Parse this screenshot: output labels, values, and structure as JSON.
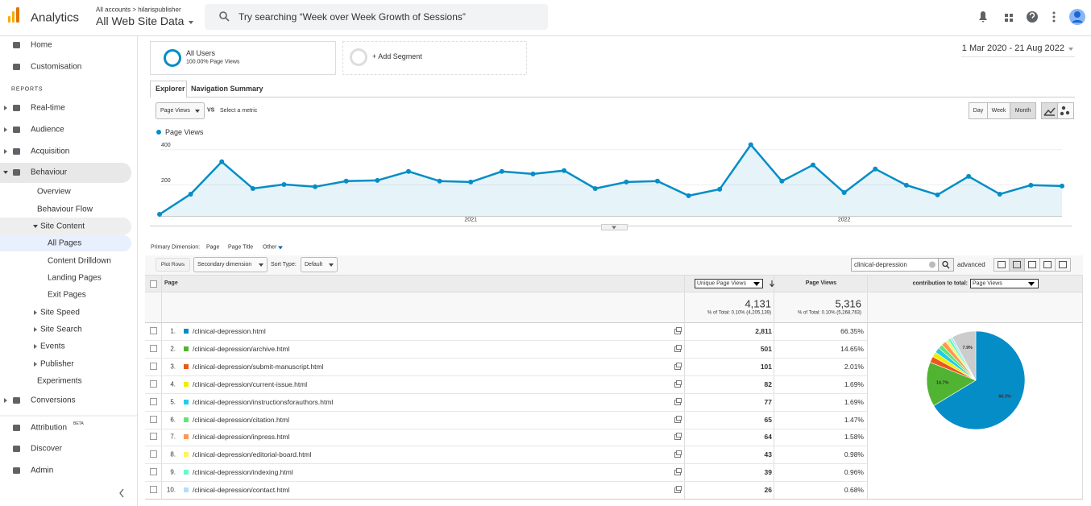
{
  "header": {
    "app_name": "Analytics",
    "breadcrumb": "All accounts > hilarispublisher",
    "property": "All Web Site Data",
    "search_placeholder": "Try searching “Week over Week Growth of Sessions”"
  },
  "sidebar": {
    "reports_heading": "REPORTS",
    "beta_badge": "BETA",
    "items": [
      "Home",
      "Customisation",
      "Real-time",
      "Audience",
      "Acquisition",
      "Behaviour",
      "Overview",
      "Behaviour Flow",
      "Site Content",
      "All Pages",
      "Content Drilldown",
      "Landing Pages",
      "Exit Pages",
      "Site Speed",
      "Site Search",
      "Events",
      "Publisher",
      "Experiments",
      "Conversions",
      "Attribution",
      "Discover",
      "Admin"
    ]
  },
  "segments": {
    "active_name": "All Users",
    "active_detail": "100.00% Page Views",
    "add_segment": "+ Add Segment"
  },
  "date_range": "1 Mar 2020 - 21 Aug 2022",
  "tabs": [
    "Explorer",
    "Navigation Summary"
  ],
  "metric_selector": "Page Views",
  "versus": "VS",
  "select_metric": "Select a metric",
  "granularity": [
    "Day",
    "Week",
    "Month"
  ],
  "explorer_chart": {
    "type": "line",
    "categories": [
      null,
      null,
      null,
      null,
      null,
      null,
      null,
      null,
      null,
      null,
      "2021",
      null,
      null,
      null,
      null,
      null,
      null,
      null,
      null,
      null,
      null,
      null,
      "2022",
      null,
      null,
      null,
      null,
      null,
      null,
      null
    ],
    "series": [
      {
        "name": "Page Views",
        "color": "#058dc7",
        "values": [
          9,
          124,
          308,
          156,
          179,
          166,
          198,
          202,
          253,
          198,
          193,
          253,
          239,
          258,
          156,
          193,
          198,
          115,
          152,
          405,
          198,
          290,
          133,
          267,
          175,
          120,
          225,
          124,
          175,
          170
        ]
      }
    ],
    "ylim": [
      0,
      440
    ],
    "yticks": [
      200,
      400
    ],
    "grid": true
  },
  "primary_dimension": {
    "label": "Primary Dimension:",
    "options": [
      "Page",
      "Page Title",
      "Other"
    ]
  },
  "toolbar": {
    "plot_rows": "Plot Rows",
    "secondary_dimension": "Secondary dimension",
    "sort_type_label": "Sort Type:",
    "sort_type_value": "Default",
    "filter_text": "clinical-depression",
    "advanced": "advanced"
  },
  "table": {
    "columns": [
      "Page",
      "Unique Page Views",
      "Page Views",
      "contribution to total:"
    ],
    "contribution_metric": "Page Views",
    "totals": {
      "unique_page_views": "4,131",
      "unique_page_views_detail": "% of Total: 0.10% (4,205,139)",
      "page_views": "5,316",
      "page_views_detail": "% of Total: 0.10% (5,268,763)"
    },
    "rows": [
      [
        "1.",
        "/clinical-depression.html",
        "2,811",
        "66.35%"
      ],
      [
        "2.",
        "/clinical-depression/archive.html",
        "501",
        "14.65%"
      ],
      [
        "3.",
        "/clinical-depression/submit-manuscript.html",
        "101",
        "2.01%"
      ],
      [
        "4.",
        "/clinical-depression/current-issue.html",
        "82",
        "1.69%"
      ],
      [
        "5.",
        "/clinical-depression/instructionsforauthors.html",
        "77",
        "1.69%"
      ],
      [
        "6.",
        "/clinical-depression/citation.html",
        "65",
        "1.47%"
      ],
      [
        "7.",
        "/clinical-depression/inpress.html",
        "64",
        "1.58%"
      ],
      [
        "8.",
        "/clinical-depression/editorial-board.html",
        "43",
        "0.98%"
      ],
      [
        "9.",
        "/clinical-depression/indexing.html",
        "39",
        "0.96%"
      ],
      [
        "10.",
        "/clinical-depression/contact.html",
        "26",
        "0.68%"
      ]
    ]
  },
  "contribution_pie": {
    "type": "pie",
    "values": [
      66.35,
      14.65,
      2.01,
      1.69,
      1.69,
      1.47,
      1.58,
      0.98,
      0.96,
      0.68,
      7.94
    ],
    "value_labels": [
      "66.3%",
      "14.7%",
      null,
      null,
      null,
      null,
      null,
      null,
      null,
      null,
      "7.9%"
    ],
    "colors": [
      "#058dc7",
      "#50b432",
      "#ed561b",
      "#edef00",
      "#24cbe5",
      "#64e572",
      "#ff9655",
      "#fff263",
      "#6af9c4",
      "#b2deff",
      "#cccccc"
    ]
  }
}
